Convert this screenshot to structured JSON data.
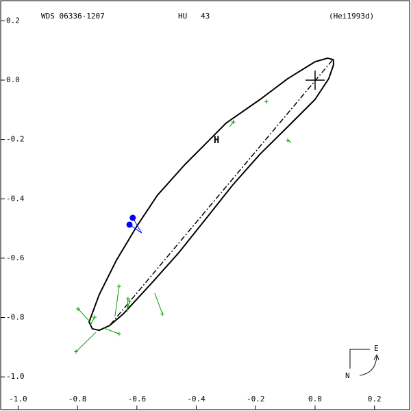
{
  "chart_data": {
    "type": "orbit",
    "header": {
      "left": "WDS 06336-1207",
      "center": "HU   43",
      "right": "(Hei1993d)"
    },
    "xlim": [
      -1.061,
      0.323
    ],
    "ylim": [
      -1.115,
      0.27
    ],
    "xticks": [
      {
        "value": -1.0,
        "label": "-1.0"
      },
      -0.8,
      -0.6,
      -0.4,
      -0.2,
      {
        "value": 0.0,
        "label": "0.0"
      },
      0.2
    ],
    "yticks": [
      0.2,
      {
        "value": 0.0,
        "label": "0.0"
      },
      -0.2,
      -0.4,
      -0.6,
      -0.8,
      {
        "value": -1.0,
        "label": "-1.0"
      }
    ],
    "orbit": {
      "color": "#000000",
      "x": [
        0.062,
        0.042,
        0.0,
        -0.092,
        -0.185,
        -0.3,
        -0.369,
        -0.438,
        -0.531,
        -0.6,
        -0.669,
        -0.727,
        -0.761,
        -0.75,
        -0.727,
        -0.692,
        -0.646,
        -0.554,
        -0.461,
        -0.369,
        -0.277,
        -0.185,
        -0.092,
        0.0,
        0.046,
        0.062,
        0.062
      ],
      "y": [
        0.069,
        0.074,
        0.062,
        0.005,
        -0.065,
        -0.145,
        -0.215,
        -0.284,
        -0.388,
        -0.492,
        -0.607,
        -0.723,
        -0.815,
        -0.838,
        -0.843,
        -0.827,
        -0.788,
        -0.688,
        -0.584,
        -0.469,
        -0.353,
        -0.249,
        -0.157,
        -0.065,
        0.005,
        0.051,
        0.069
      ]
    },
    "node_line": {
      "color": "#000000",
      "x": [
        0.058,
        -0.692
      ],
      "y": [
        0.067,
        -0.827
      ]
    },
    "observations": {
      "color": "#00a000",
      "x": [
        -0.798,
        -0.805,
        -0.743,
        -0.66,
        -0.66,
        -0.63,
        -0.625,
        -0.514,
        -0.275,
        -0.164,
        -0.092
      ],
      "y": [
        -0.771,
        -0.915,
        -0.799,
        -0.855,
        -0.695,
        -0.737,
        -0.746,
        -0.788,
        -0.141,
        -0.072,
        -0.203
      ],
      "fit_x": [
        -0.757,
        -0.738,
        -0.757,
        -0.715,
        -0.674,
        -0.634,
        -0.634,
        -0.54,
        -0.288,
        -0.166,
        -0.081
      ],
      "fit_y": [
        -0.815,
        -0.85,
        -0.827,
        -0.834,
        -0.797,
        -0.781,
        -0.781,
        -0.718,
        -0.157,
        -0.076,
        -0.21
      ]
    },
    "blue_points": {
      "color": "#0000ff",
      "x": [
        -0.614,
        -0.625
      ],
      "y": [
        -0.464,
        -0.487
      ],
      "fit_x": [
        -0.584,
        -0.584
      ],
      "fit_y": [
        -0.515,
        -0.515
      ]
    },
    "marker": {
      "label": "H",
      "color": "#ff0000",
      "x": -0.332,
      "y": -0.203
    },
    "primary": {
      "x": 0.0,
      "y": 0.0
    },
    "compass": {
      "east": "E",
      "north": "N"
    }
  }
}
